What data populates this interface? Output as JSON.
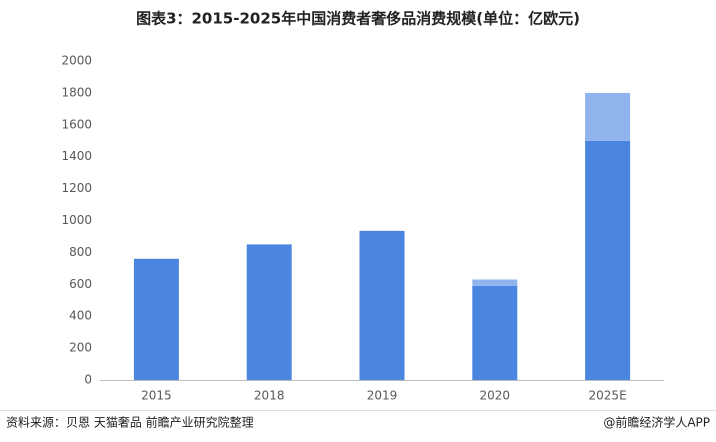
{
  "chart_data": {
    "type": "stacked_bar",
    "title": "图表3：2015-2025年中国消费者奢侈品消费规模(单位：亿欧元)",
    "categories": [
      "2015",
      "2018",
      "2019",
      "2020",
      "2025E"
    ],
    "series": [
      {
        "color": "#4a86e0",
        "values": [
          760,
          850,
          935,
          590,
          1500
        ]
      },
      {
        "color": "#8fb4ee",
        "values": [
          0,
          0,
          0,
          40,
          300
        ]
      }
    ],
    "ylim": [
      0,
      2000
    ],
    "yticks": [
      0,
      200,
      400,
      600,
      800,
      1000,
      1200,
      1400,
      1600,
      1800,
      2000
    ],
    "grid": false,
    "source": "资料来源：贝恩 天猫奢品 前瞻产业研究院整理",
    "credit": "@前瞻经济学人APP"
  }
}
